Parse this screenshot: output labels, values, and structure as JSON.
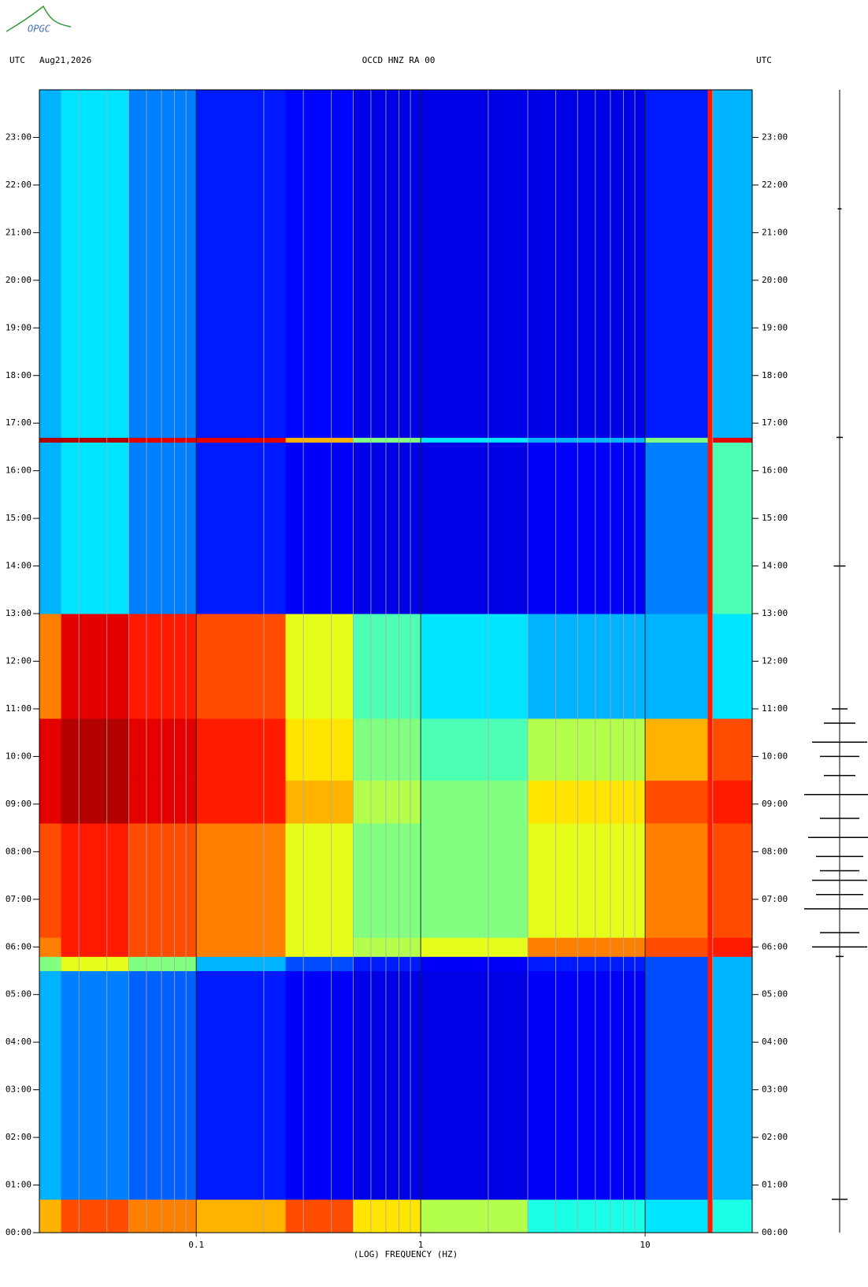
{
  "logo": "OPGC",
  "chart_data": {
    "type": "spectrogram",
    "title": "OCCD HNZ RA 00",
    "date": "Aug21,2026",
    "left_label": "UTC",
    "right_label": "UTC",
    "xlabel": "(LOG) FREQUENCY (HZ)",
    "xlog": true,
    "xlim": [
      0.02,
      30
    ],
    "xticks": [
      0.1,
      1,
      10
    ],
    "minor_grid": true,
    "ylim": [
      0,
      24
    ],
    "yticks": [
      {
        "value": 0,
        "label": "00:00"
      },
      {
        "value": 1,
        "label": "01:00"
      },
      {
        "value": 2,
        "label": "02:00"
      },
      {
        "value": 3,
        "label": "03:00"
      },
      {
        "value": 4,
        "label": "04:00"
      },
      {
        "value": 5,
        "label": "05:00"
      },
      {
        "value": 6,
        "label": "06:00"
      },
      {
        "value": 7,
        "label": "07:00"
      },
      {
        "value": 8,
        "label": "08:00"
      },
      {
        "value": 9,
        "label": "09:00"
      },
      {
        "value": 10,
        "label": "10:00"
      },
      {
        "value": 11,
        "label": "11:00"
      },
      {
        "value": 12,
        "label": "12:00"
      },
      {
        "value": 13,
        "label": "13:00"
      },
      {
        "value": 14,
        "label": "14:00"
      },
      {
        "value": 15,
        "label": "15:00"
      },
      {
        "value": 16,
        "label": "16:00"
      },
      {
        "value": 17,
        "label": "17:00"
      },
      {
        "value": 18,
        "label": "18:00"
      },
      {
        "value": 19,
        "label": "19:00"
      },
      {
        "value": 20,
        "label": "20:00"
      },
      {
        "value": 21,
        "label": "21:00"
      },
      {
        "value": 22,
        "label": "22:00"
      },
      {
        "value": 23,
        "label": "23:00"
      }
    ],
    "zlim": [
      0,
      1
    ],
    "freq_bins": [
      0.02,
      0.025,
      0.05,
      0.1,
      0.25,
      0.5,
      1,
      3,
      10,
      19,
      20,
      30
    ],
    "rows": [
      {
        "t0": 0,
        "t1": 0.7,
        "z": [
          0.7,
          0.8,
          0.75,
          0.7,
          0.8,
          0.65,
          0.55,
          0.4,
          0.35,
          0.85,
          0.4
        ]
      },
      {
        "t0": 0.7,
        "t1": 5.5,
        "z": [
          0.3,
          0.25,
          0.22,
          0.15,
          0.12,
          0.1,
          0.1,
          0.12,
          0.2,
          0.85,
          0.3
        ]
      },
      {
        "t0": 5.5,
        "t1": 5.8,
        "z": [
          0.5,
          0.6,
          0.5,
          0.3,
          0.2,
          0.15,
          0.12,
          0.15,
          0.2,
          0.85,
          0.3
        ]
      },
      {
        "t0": 5.8,
        "t1": 6.2,
        "z": [
          0.75,
          0.85,
          0.8,
          0.75,
          0.6,
          0.55,
          0.6,
          0.75,
          0.8,
          0.85,
          0.85
        ]
      },
      {
        "t0": 6.2,
        "t1": 8.6,
        "z": [
          0.8,
          0.85,
          0.8,
          0.75,
          0.6,
          0.5,
          0.5,
          0.6,
          0.75,
          0.85,
          0.8
        ]
      },
      {
        "t0": 8.6,
        "t1": 9.5,
        "z": [
          0.9,
          0.95,
          0.9,
          0.85,
          0.7,
          0.55,
          0.5,
          0.65,
          0.8,
          0.85,
          0.85
        ]
      },
      {
        "t0": 9.5,
        "t1": 10.8,
        "z": [
          0.9,
          0.95,
          0.9,
          0.85,
          0.65,
          0.5,
          0.45,
          0.55,
          0.7,
          0.85,
          0.8
        ]
      },
      {
        "t0": 10.8,
        "t1": 13,
        "z": [
          0.75,
          0.9,
          0.85,
          0.8,
          0.6,
          0.45,
          0.35,
          0.3,
          0.3,
          0.85,
          0.35
        ]
      },
      {
        "t0": 13,
        "t1": 16.6,
        "z": [
          0.3,
          0.35,
          0.25,
          0.15,
          0.12,
          0.1,
          0.1,
          0.12,
          0.25,
          0.85,
          0.45
        ]
      },
      {
        "t0": 16.6,
        "t1": 16.7,
        "z": [
          0.95,
          0.95,
          0.9,
          0.9,
          0.7,
          0.5,
          0.35,
          0.3,
          0.5,
          0.85,
          0.9
        ]
      },
      {
        "t0": 16.7,
        "t1": 24,
        "z": [
          0.3,
          0.35,
          0.25,
          0.15,
          0.13,
          0.1,
          0.1,
          0.1,
          0.15,
          0.85,
          0.3
        ]
      }
    ],
    "trace": {
      "t": [
        0.7,
        5.8,
        6.0,
        6.3,
        6.8,
        7.1,
        7.4,
        7.6,
        7.9,
        8.3,
        8.7,
        9.2,
        9.6,
        10.0,
        10.3,
        10.7,
        11.0,
        14.0,
        16.7,
        21.5
      ],
      "amp": [
        0.2,
        0.1,
        0.7,
        0.5,
        0.9,
        0.6,
        0.7,
        0.5,
        0.6,
        0.8,
        0.5,
        0.9,
        0.4,
        0.5,
        0.7,
        0.4,
        0.2,
        0.15,
        0.08,
        0.05
      ]
    }
  }
}
